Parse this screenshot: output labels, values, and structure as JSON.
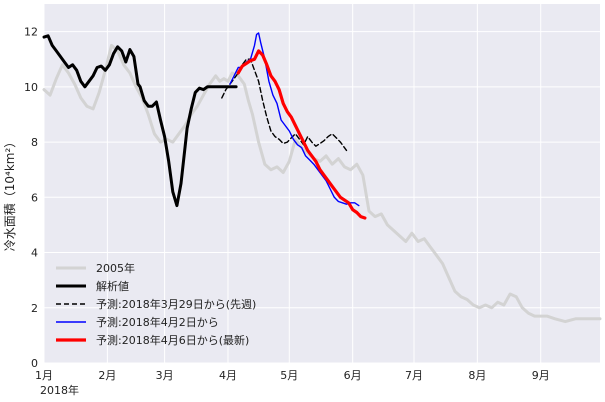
{
  "chart_data": {
    "type": "line",
    "ylabel": "冷水面積（10⁴km²）",
    "ylim": [
      0,
      13
    ],
    "y_ticks": [
      0,
      2,
      4,
      6,
      8,
      10,
      12
    ],
    "x_year_label": "2018年",
    "x_tick_labels": [
      "1月",
      "2月",
      "3月",
      "4月",
      "5月",
      "6月",
      "7月",
      "8月",
      "9月"
    ],
    "x_tick_days": [
      0,
      31,
      59,
      90,
      120,
      151,
      181,
      212,
      243
    ],
    "xlim_days": [
      0,
      272
    ],
    "grid": true,
    "legend_position": "lower-left",
    "series": [
      {
        "name": "2005年",
        "color": "#d3d3d3",
        "style": "solid",
        "days": [
          0,
          3,
          6,
          9,
          12,
          15,
          18,
          21,
          24,
          27,
          30,
          33,
          36,
          39,
          42,
          45,
          48,
          51,
          54,
          57,
          60,
          63,
          66,
          69,
          72,
          75,
          78,
          81,
          84,
          86,
          88,
          90,
          92,
          95,
          98,
          100,
          102,
          105,
          108,
          111,
          114,
          117,
          120,
          123,
          126,
          129,
          132,
          135,
          138,
          141,
          144,
          147,
          150,
          153,
          156,
          159,
          162,
          165,
          168,
          171,
          174,
          177,
          180,
          183,
          186,
          189,
          192,
          195,
          198,
          201,
          204,
          207,
          210,
          213,
          216,
          219,
          222,
          225,
          228,
          231,
          234,
          237,
          240,
          243,
          246,
          250,
          255,
          260,
          265,
          270,
          272
        ],
        "values": [
          9.9,
          9.7,
          10.3,
          10.8,
          10.5,
          10.1,
          9.6,
          9.3,
          9.2,
          9.8,
          10.6,
          11.5,
          11.3,
          10.8,
          10.5,
          10.0,
          9.6,
          9.0,
          8.3,
          8.0,
          8.1,
          8.0,
          8.3,
          8.6,
          9.0,
          9.3,
          9.7,
          10.1,
          10.4,
          10.2,
          10.3,
          10.2,
          10.5,
          10.4,
          10.1,
          9.5,
          9.0,
          8.0,
          7.2,
          7.0,
          7.1,
          6.9,
          7.3,
          8.1,
          7.8,
          7.6,
          7.4,
          7.3,
          7.5,
          7.2,
          7.4,
          7.1,
          7.0,
          7.2,
          6.8,
          5.5,
          5.3,
          5.4,
          5.0,
          4.8,
          4.6,
          4.4,
          4.7,
          4.4,
          4.5,
          4.2,
          3.9,
          3.6,
          3.1,
          2.6,
          2.4,
          2.3,
          2.1,
          2.0,
          2.1,
          2.0,
          2.2,
          2.1,
          2.5,
          2.4,
          2.0,
          1.8,
          1.7,
          1.7,
          1.7,
          1.6,
          1.5,
          1.6,
          1.6,
          1.6,
          1.6
        ]
      },
      {
        "name": "解析値",
        "color": "#000000",
        "style": "solid",
        "days": [
          0,
          2,
          4,
          6,
          8,
          10,
          12,
          14,
          16,
          18,
          20,
          22,
          24,
          26,
          28,
          30,
          32,
          34,
          36,
          38,
          40,
          42,
          44,
          46,
          47,
          49,
          51,
          53,
          55,
          57,
          59,
          61,
          63,
          65,
          67,
          69,
          70,
          72,
          74,
          76,
          78,
          80,
          82,
          84,
          86,
          88,
          90,
          92,
          94
        ],
        "values": [
          11.8,
          11.85,
          11.5,
          11.3,
          11.1,
          10.9,
          10.7,
          10.8,
          10.6,
          10.2,
          10.0,
          10.2,
          10.4,
          10.7,
          10.75,
          10.6,
          10.8,
          11.2,
          11.45,
          11.3,
          10.9,
          11.35,
          11.1,
          10.1,
          10.0,
          9.5,
          9.3,
          9.3,
          9.45,
          8.8,
          8.2,
          7.3,
          6.2,
          5.7,
          6.5,
          7.8,
          8.5,
          9.2,
          9.8,
          9.95,
          9.9,
          10.0,
          10.0,
          10.0,
          10.0,
          10.0,
          10.0,
          10.0,
          10.0
        ]
      },
      {
        "name": "予測:2018年3月29日から(先週)",
        "color": "#000000",
        "style": "dashed",
        "days": [
          87,
          89,
          91,
          93,
          95,
          97,
          99,
          101,
          103,
          105,
          107,
          109,
          111,
          113,
          115,
          117,
          119,
          121,
          123,
          125,
          127,
          129,
          131,
          133,
          135,
          137,
          139,
          141,
          143,
          145,
          148
        ],
        "values": [
          9.6,
          9.9,
          10.1,
          10.3,
          10.5,
          10.8,
          11.0,
          11.0,
          10.6,
          10.2,
          9.5,
          8.9,
          8.4,
          8.2,
          8.1,
          7.95,
          8.0,
          8.15,
          8.3,
          8.1,
          7.9,
          8.2,
          8.0,
          7.85,
          7.95,
          8.05,
          8.2,
          8.3,
          8.15,
          8.0,
          7.7
        ]
      },
      {
        "name": "予測:2018年4月2日から",
        "color": "#0000ff",
        "style": "solid",
        "days": [
          91,
          93,
          95,
          97,
          99,
          101,
          103,
          104,
          105,
          106,
          108,
          110,
          112,
          114,
          116,
          118,
          120,
          122,
          124,
          126,
          128,
          130,
          132,
          134,
          136,
          138,
          140,
          142,
          144,
          146,
          148,
          150,
          152,
          154
        ],
        "values": [
          10.1,
          10.4,
          10.7,
          10.7,
          10.9,
          11.0,
          11.5,
          11.9,
          11.95,
          11.6,
          11.0,
          10.2,
          9.7,
          9.4,
          8.8,
          8.6,
          8.4,
          8.1,
          7.9,
          7.8,
          7.5,
          7.35,
          7.2,
          7.0,
          6.8,
          6.6,
          6.3,
          6.0,
          5.85,
          5.8,
          5.75,
          5.8,
          5.8,
          5.7
        ]
      },
      {
        "name": "予測:2018年4月6日から(最新)",
        "color": "#ff0000",
        "style": "solid",
        "days": [
          95,
          97,
          99,
          101,
          103,
          105,
          107,
          109,
          111,
          113,
          115,
          117,
          119,
          121,
          123,
          125,
          127,
          129,
          131,
          133,
          135,
          137,
          139,
          141,
          143,
          145,
          147,
          149,
          151,
          153,
          155,
          157
        ],
        "values": [
          10.5,
          10.75,
          10.85,
          10.95,
          11.0,
          11.3,
          11.15,
          10.8,
          10.4,
          10.2,
          9.9,
          9.4,
          9.1,
          8.9,
          8.6,
          8.3,
          8.0,
          7.7,
          7.5,
          7.3,
          7.0,
          6.8,
          6.6,
          6.4,
          6.2,
          6.0,
          5.9,
          5.8,
          5.55,
          5.45,
          5.3,
          5.25
        ]
      }
    ]
  }
}
